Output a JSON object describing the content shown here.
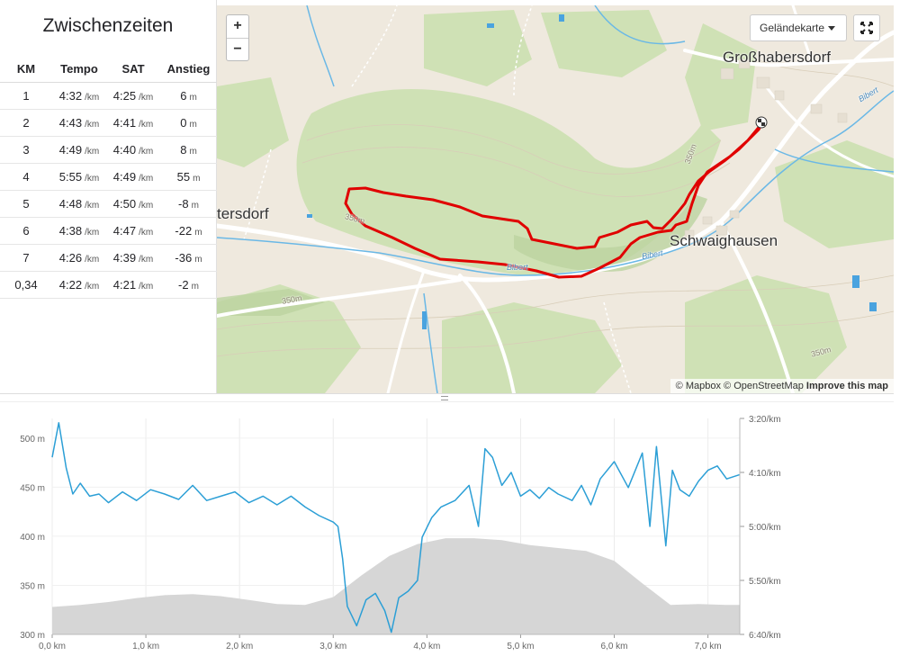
{
  "splits": {
    "title": "Zwischenzeiten",
    "headers": [
      "KM",
      "Tempo",
      "SAT",
      "Anstieg"
    ],
    "pace_unit": "/km",
    "elev_unit": "m",
    "rows": [
      {
        "km": "1",
        "tempo": "4:32",
        "sat": "4:25",
        "anstieg": "6"
      },
      {
        "km": "2",
        "tempo": "4:43",
        "sat": "4:41",
        "anstieg": "0"
      },
      {
        "km": "3",
        "tempo": "4:49",
        "sat": "4:40",
        "anstieg": "8"
      },
      {
        "km": "4",
        "tempo": "5:55",
        "sat": "4:49",
        "anstieg": "55"
      },
      {
        "km": "5",
        "tempo": "4:48",
        "sat": "4:50",
        "anstieg": "-8"
      },
      {
        "km": "6",
        "tempo": "4:38",
        "sat": "4:47",
        "anstieg": "-22"
      },
      {
        "km": "7",
        "tempo": "4:26",
        "sat": "4:39",
        "anstieg": "-36"
      },
      {
        "km": "0,34",
        "tempo": "4:22",
        "sat": "4:21",
        "anstieg": "-2"
      }
    ]
  },
  "map": {
    "zoom_in": "+",
    "zoom_out": "−",
    "layer_label": "Geländekarte",
    "places": [
      "Großhabersdorf",
      "Schwaighausen",
      "tersdorf"
    ],
    "small_labels": [
      "350m",
      "350m",
      "350m",
      "350m",
      "Bibert",
      "Bibert",
      "Bibert"
    ],
    "attribution": {
      "mapbox": "© Mapbox",
      "osm": "© OpenStreetMap",
      "improve": "Improve this map"
    },
    "colors": {
      "route": "#e00000",
      "water": "#4aa3df",
      "forest": "#cfe1b5"
    },
    "icons": [
      "zoom-in-icon",
      "zoom-out-icon",
      "caret-down-icon",
      "fullscreen-icon",
      "finish-flag-icon"
    ]
  },
  "chart_data": {
    "type": "line",
    "x_unit": "km",
    "xlim": [
      0,
      7.34
    ],
    "x_ticks": [
      "0,0 km",
      "1,0 km",
      "2,0 km",
      "3,0 km",
      "4,0 km",
      "5,0 km",
      "6,0 km",
      "7,0 km"
    ],
    "left_axis": {
      "ticks": [
        "300 m",
        "350 m",
        "400 m",
        "450 m",
        "500 m"
      ],
      "ylim": [
        300,
        520
      ]
    },
    "right_axis": {
      "ticks": [
        "3:20/km",
        "4:10/km",
        "5:00/km",
        "5:50/km",
        "6:40/km"
      ],
      "ylim_seconds_per_km": [
        200,
        400
      ],
      "inverted": true
    },
    "grid": true,
    "colors": {
      "pace": "#2c9fd6",
      "elevation": "#d6d6d6"
    },
    "series": [
      {
        "kind": "elevation_area",
        "axis": "left",
        "x": [
          0,
          0.3,
          0.6,
          0.9,
          1.2,
          1.5,
          1.8,
          2.1,
          2.4,
          2.7,
          3.0,
          3.3,
          3.6,
          3.9,
          4.2,
          4.5,
          4.8,
          5.1,
          5.4,
          5.7,
          6.0,
          6.3,
          6.6,
          6.9,
          7.2,
          7.34
        ],
        "y": [
          328,
          330,
          333,
          337,
          340,
          341,
          339,
          335,
          331,
          330,
          338,
          360,
          380,
          392,
          398,
          398,
          396,
          391,
          388,
          385,
          375,
          352,
          330,
          331,
          330,
          330
        ]
      },
      {
        "kind": "pace_line",
        "axis": "right",
        "x": [
          0,
          0.07,
          0.15,
          0.22,
          0.3,
          0.4,
          0.5,
          0.6,
          0.75,
          0.9,
          1.05,
          1.2,
          1.35,
          1.5,
          1.65,
          1.8,
          1.95,
          2.1,
          2.25,
          2.4,
          2.55,
          2.7,
          2.85,
          3.0,
          3.05,
          3.1,
          3.15,
          3.25,
          3.35,
          3.45,
          3.55,
          3.62,
          3.7,
          3.8,
          3.9,
          3.95,
          4.05,
          4.15,
          4.3,
          4.45,
          4.55,
          4.62,
          4.7,
          4.8,
          4.9,
          5.0,
          5.1,
          5.2,
          5.3,
          5.4,
          5.55,
          5.65,
          5.75,
          5.85,
          6.0,
          6.15,
          6.3,
          6.38,
          6.45,
          6.55,
          6.62,
          6.7,
          6.8,
          6.9,
          7.0,
          7.1,
          7.2,
          7.34
        ],
        "y": [
          236,
          204,
          246,
          270,
          260,
          272,
          270,
          278,
          268,
          276,
          266,
          270,
          275,
          262,
          276,
          272,
          268,
          278,
          272,
          280,
          272,
          282,
          290,
          296,
          300,
          330,
          374,
          392,
          368,
          362,
          378,
          398,
          366,
          360,
          350,
          310,
          292,
          282,
          276,
          262,
          300,
          228,
          236,
          262,
          250,
          272,
          266,
          274,
          264,
          270,
          276,
          262,
          280,
          256,
          240,
          264,
          232,
          300,
          226,
          318,
          248,
          266,
          272,
          258,
          248,
          244,
          256,
          252
        ]
      }
    ]
  }
}
